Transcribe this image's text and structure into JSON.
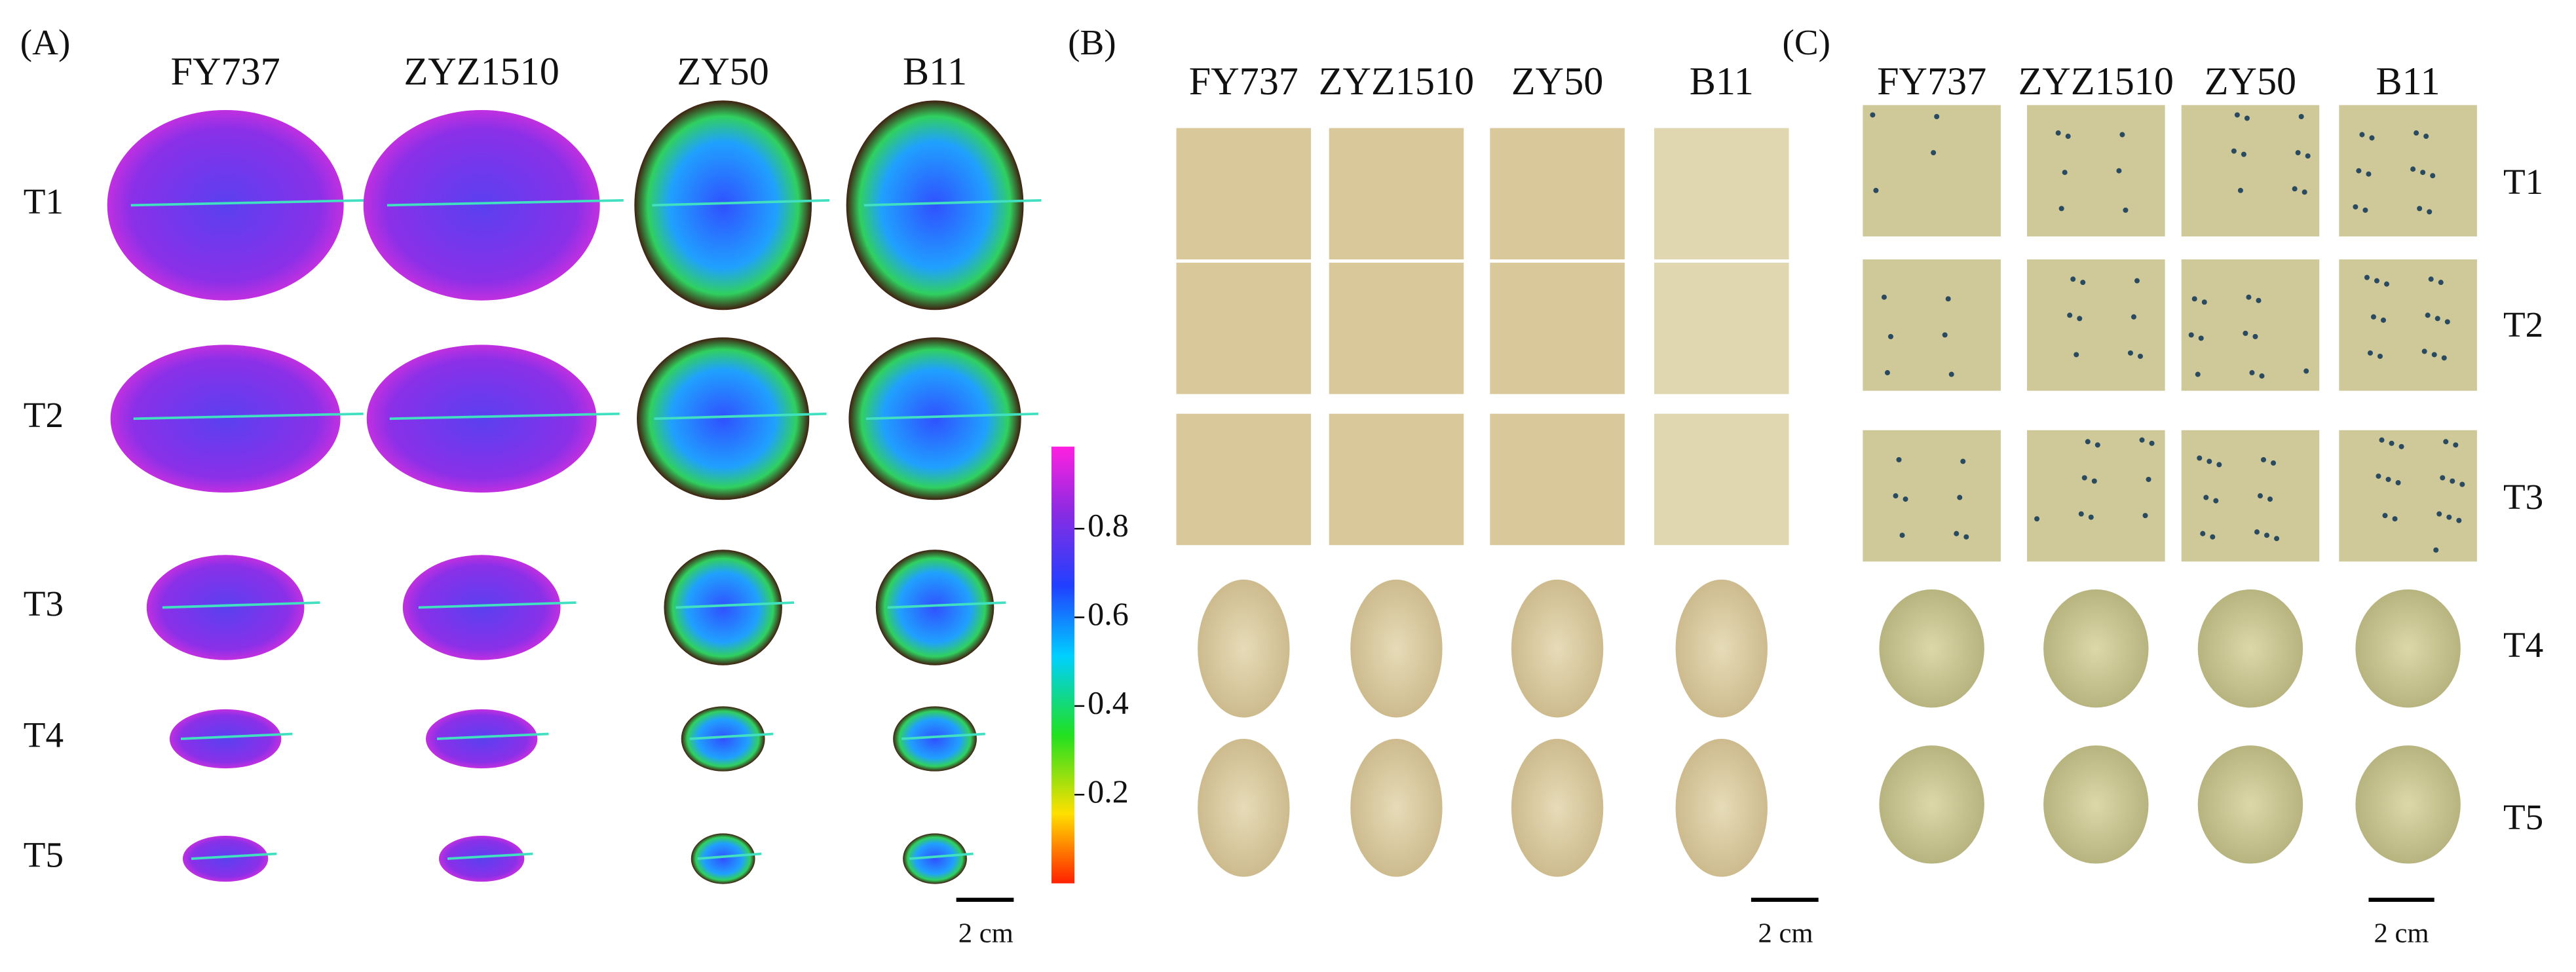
{
  "panel_a": {
    "label": "(A)",
    "columns": [
      "FY737",
      "ZYZ1510",
      "ZY50",
      "B11"
    ],
    "rows": [
      "T1",
      "T2",
      "T3",
      "T4",
      "T5"
    ],
    "colorbar": {
      "ticks": [
        0.8,
        0.6,
        0.4,
        0.2
      ]
    },
    "scale_bar": "2 cm"
  },
  "panel_b": {
    "label": "(B)",
    "columns": [
      "FY737",
      "ZYZ1510",
      "ZY50",
      "B11"
    ],
    "scale_bar": "2 cm"
  },
  "panel_c": {
    "label": "(C)",
    "columns": [
      "FY737",
      "ZYZ1510",
      "ZY50",
      "B11"
    ],
    "rows": [
      "T1",
      "T2",
      "T3",
      "T4",
      "T5"
    ],
    "scale_bar": "2 cm"
  }
}
